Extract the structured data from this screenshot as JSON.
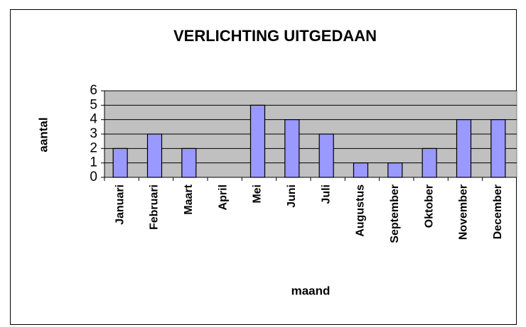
{
  "chart_data": {
    "type": "bar",
    "title": "VERLICHTING UITGEDAAN",
    "x_label": "maand",
    "y_label": "aantal",
    "categories": [
      "Januari",
      "Februari",
      "Maart",
      "April",
      "Mei",
      "Juni",
      "Juli",
      "Augustus",
      "September",
      "Oktober",
      "November",
      "December"
    ],
    "values": [
      2,
      3,
      2,
      0,
      5,
      4,
      3,
      1,
      1,
      2,
      4,
      4
    ],
    "color": "#9999ff",
    "ylim": [
      0,
      6
    ],
    "yticks": [
      0,
      1,
      2,
      3,
      4,
      5,
      6
    ],
    "grid": true
  }
}
